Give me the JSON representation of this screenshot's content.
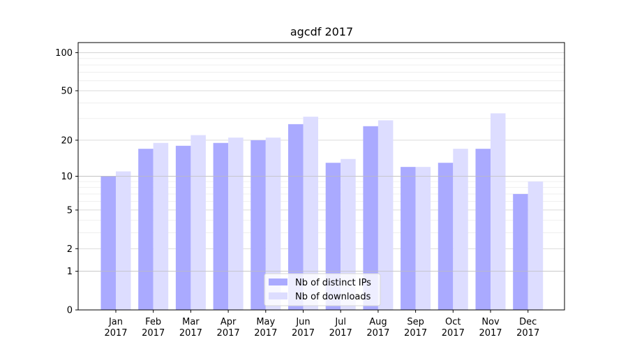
{
  "chart_data": {
    "type": "bar",
    "title": "agcdf 2017",
    "xlabel": "",
    "ylabel": "",
    "y_scale": "log(1+y)",
    "ylim": [
      0,
      120
    ],
    "y_ticks": [
      0,
      1,
      2,
      5,
      10,
      20,
      50,
      100
    ],
    "categories": [
      [
        "Jan",
        "2017"
      ],
      [
        "Feb",
        "2017"
      ],
      [
        "Mar",
        "2017"
      ],
      [
        "Apr",
        "2017"
      ],
      [
        "May",
        "2017"
      ],
      [
        "Jun",
        "2017"
      ],
      [
        "Jul",
        "2017"
      ],
      [
        "Aug",
        "2017"
      ],
      [
        "Sep",
        "2017"
      ],
      [
        "Oct",
        "2017"
      ],
      [
        "Nov",
        "2017"
      ],
      [
        "Dec",
        "2017"
      ]
    ],
    "series": [
      {
        "name": "Nb of distinct IPs",
        "color": "#aaaaff",
        "values": [
          10,
          17,
          18,
          19,
          20,
          27,
          13,
          26,
          12,
          13,
          17,
          7
        ]
      },
      {
        "name": "Nb of downloads",
        "color": "#ddddff",
        "values": [
          11,
          19,
          22,
          21,
          21,
          31,
          14,
          29,
          12,
          17,
          33,
          9
        ]
      }
    ],
    "legend": "bottom-center",
    "grid": true
  }
}
